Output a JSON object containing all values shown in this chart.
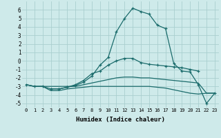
{
  "bg_color": "#ceeaea",
  "grid_color": "#aacfcf",
  "line_color": "#1a6b6b",
  "xlabel": "Humidex (Indice chaleur)",
  "xlim": [
    -0.5,
    23.5
  ],
  "ylim": [
    -5.5,
    7.0
  ],
  "xticks": [
    0,
    1,
    2,
    3,
    4,
    5,
    6,
    7,
    8,
    9,
    10,
    11,
    12,
    13,
    14,
    15,
    16,
    17,
    18,
    19,
    20,
    21,
    22,
    23
  ],
  "yticks": [
    -5,
    -4,
    -3,
    -2,
    -1,
    0,
    1,
    2,
    3,
    4,
    5,
    6
  ],
  "series": [
    {
      "x": [
        0,
        1,
        2,
        3,
        4,
        5,
        6,
        7,
        8,
        9,
        10,
        11,
        12,
        13,
        14,
        15,
        16,
        17,
        18,
        19,
        20,
        21,
        22,
        23
      ],
      "y": [
        -2.8,
        -3.0,
        -3.0,
        -3.3,
        -3.3,
        -3.1,
        -2.9,
        -2.5,
        -1.8,
        -0.5,
        0.4,
        3.4,
        5.0,
        6.2,
        5.8,
        5.5,
        4.2,
        3.8,
        -0.3,
        -1.2,
        -1.3,
        -2.8,
        -5.0,
        -3.8
      ],
      "marker": "+"
    },
    {
      "x": [
        3,
        4,
        5,
        6,
        7,
        8,
        9,
        10,
        11,
        12,
        13,
        14,
        15,
        16,
        17,
        18,
        19,
        20,
        21
      ],
      "y": [
        -3.3,
        -3.3,
        -3.1,
        -2.8,
        -2.3,
        -1.5,
        -1.2,
        -0.5,
        0.0,
        0.3,
        0.3,
        -0.2,
        -0.4,
        -0.5,
        -0.6,
        -0.7,
        -0.8,
        -1.0,
        -1.2
      ],
      "marker": "+"
    },
    {
      "x": [
        0,
        1,
        2,
        3,
        4,
        5,
        6,
        7,
        8,
        9,
        10,
        11,
        12,
        13,
        14,
        15,
        16,
        17,
        18,
        19,
        20,
        21,
        22,
        23
      ],
      "y": [
        -2.8,
        -3.0,
        -3.0,
        -3.0,
        -3.0,
        -3.0,
        -3.0,
        -2.8,
        -2.6,
        -2.4,
        -2.2,
        -2.0,
        -1.9,
        -1.9,
        -2.0,
        -2.0,
        -2.1,
        -2.2,
        -2.3,
        -2.4,
        -2.5,
        -2.6,
        -3.8,
        -3.8
      ],
      "marker": null
    },
    {
      "x": [
        0,
        1,
        2,
        3,
        4,
        5,
        6,
        7,
        8,
        9,
        10,
        11,
        12,
        13,
        14,
        15,
        16,
        17,
        18,
        19,
        20,
        21,
        22,
        23
      ],
      "y": [
        -2.8,
        -3.0,
        -3.0,
        -3.5,
        -3.5,
        -3.3,
        -3.2,
        -3.1,
        -3.0,
        -3.0,
        -3.0,
        -3.0,
        -3.0,
        -3.0,
        -3.0,
        -3.0,
        -3.1,
        -3.2,
        -3.4,
        -3.6,
        -3.8,
        -3.9,
        -3.8,
        -3.8
      ],
      "marker": null
    }
  ]
}
